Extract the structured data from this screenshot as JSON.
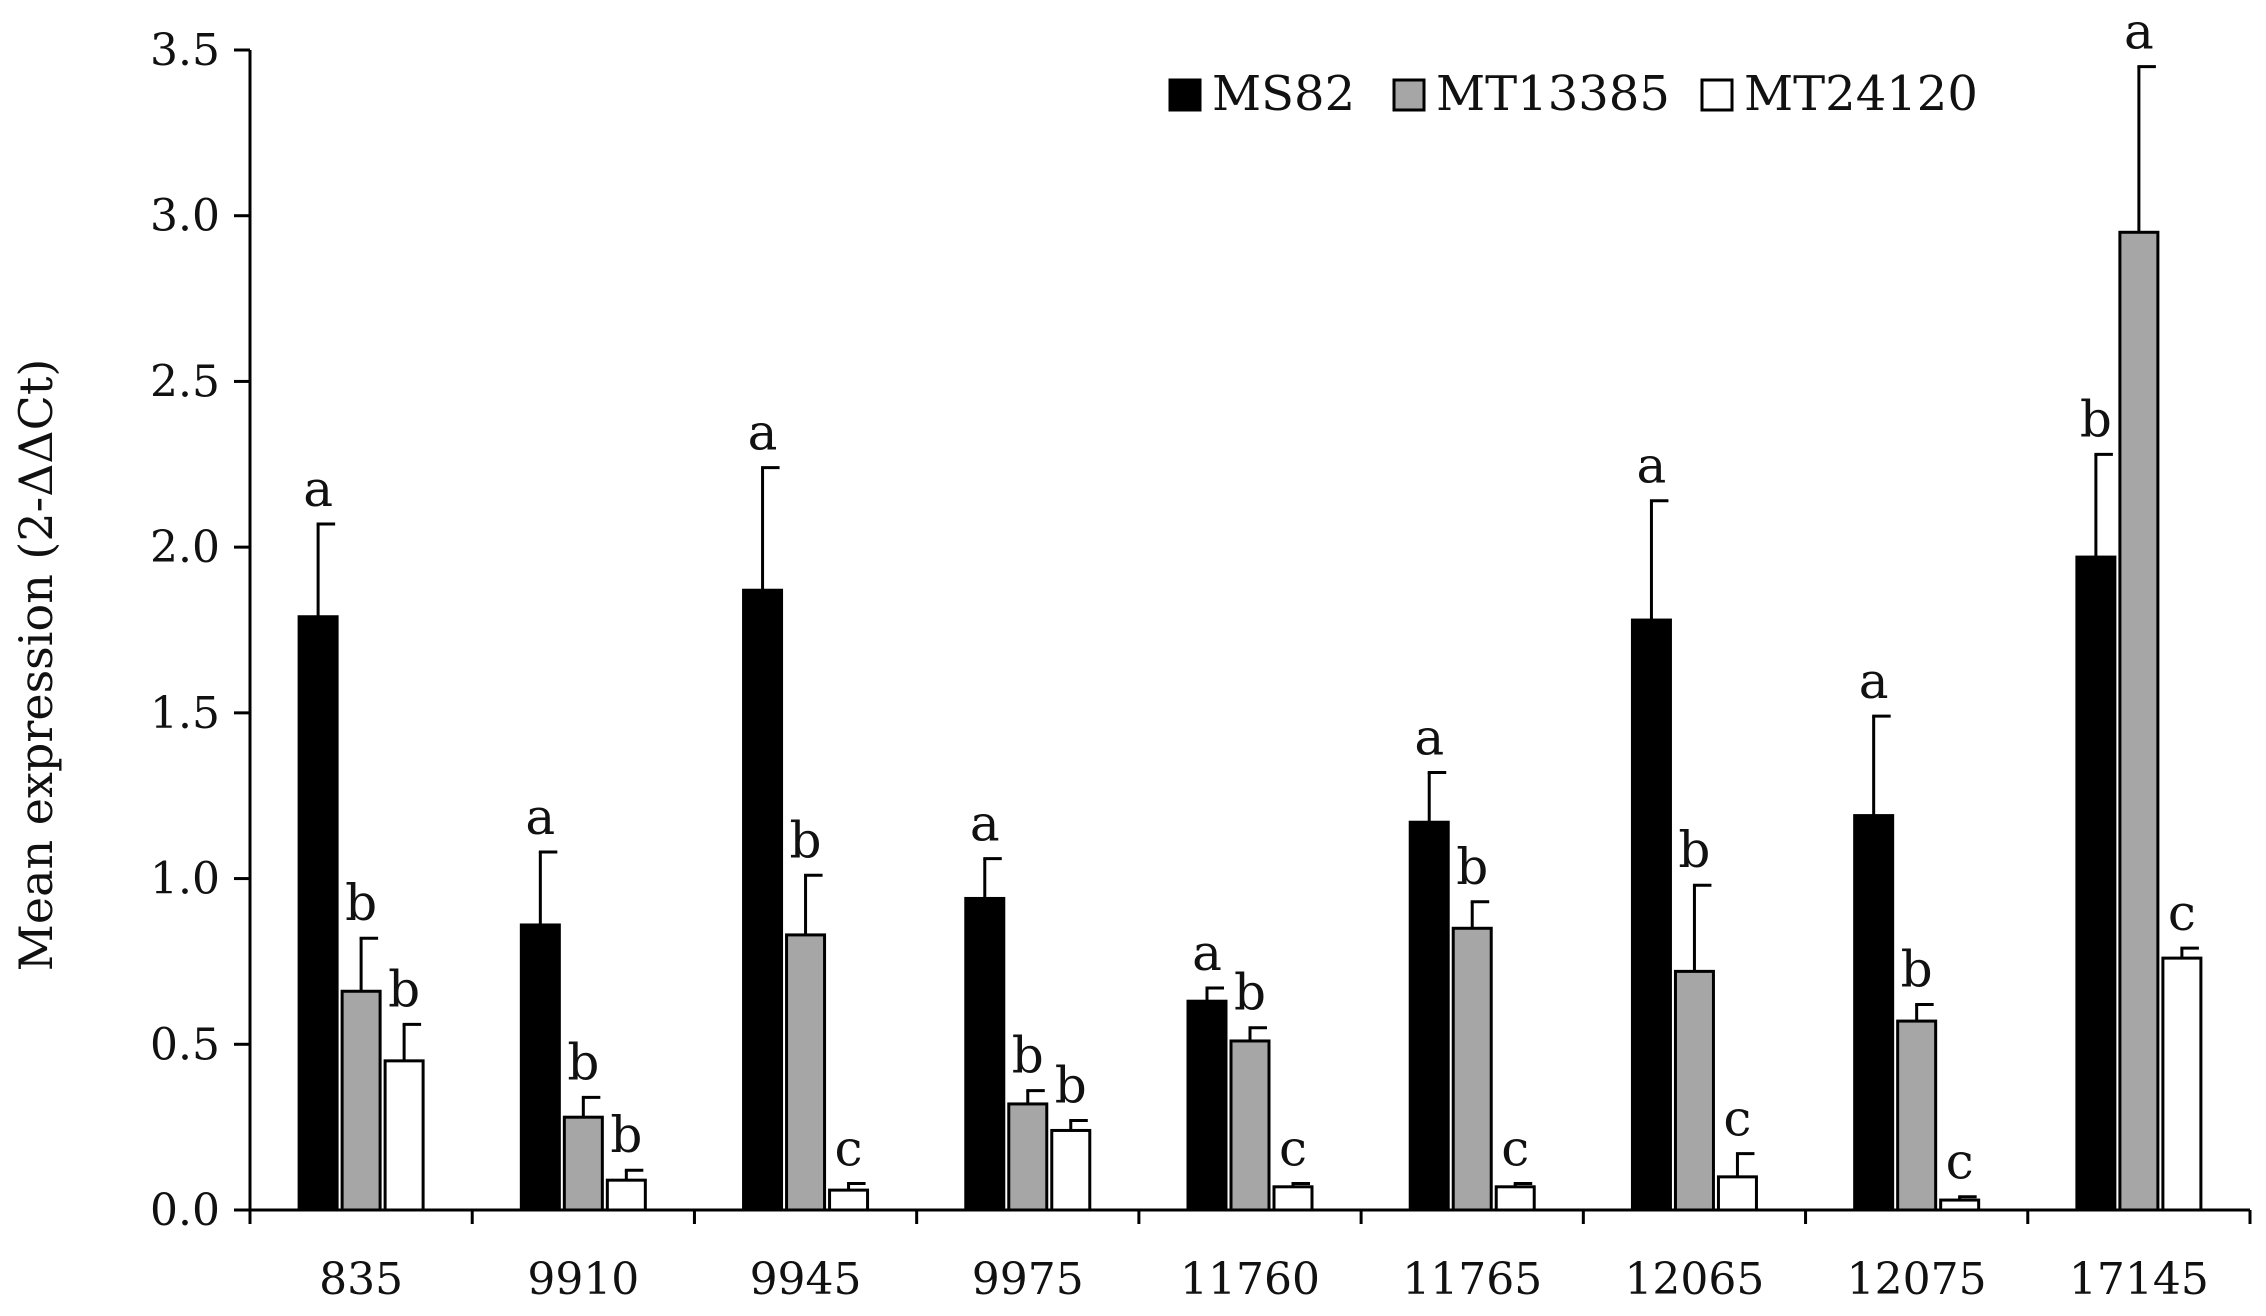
{
  "chart_data": {
    "type": "bar",
    "title": "",
    "xlabel": "",
    "ylabel": "Mean expression (2-ΔΔCt)",
    "ylim": [
      0,
      3.5
    ],
    "yticks": [
      "0.0",
      "0.5",
      "1.0",
      "1.5",
      "2.0",
      "2.5",
      "3.0",
      "3.5"
    ],
    "grid": false,
    "legend_position": "top-right",
    "categories": [
      "835",
      "9910",
      "9945",
      "9975",
      "11760",
      "11765",
      "12065",
      "12075",
      "17145"
    ],
    "series": [
      {
        "name": "MS82",
        "color": "#000000",
        "values": [
          1.79,
          0.86,
          1.87,
          0.94,
          0.63,
          1.17,
          1.78,
          1.19,
          1.97
        ],
        "errors": [
          0.28,
          0.22,
          0.37,
          0.12,
          0.04,
          0.15,
          0.36,
          0.3,
          0.31
        ],
        "labels": [
          "a",
          "a",
          "a",
          "a",
          "a",
          "a",
          "a",
          "a",
          "b"
        ]
      },
      {
        "name": "MT13385",
        "color": "#a6a6a6",
        "values": [
          0.66,
          0.28,
          0.83,
          0.32,
          0.51,
          0.85,
          0.72,
          0.57,
          2.95
        ],
        "errors": [
          0.16,
          0.06,
          0.18,
          0.04,
          0.04,
          0.08,
          0.26,
          0.05,
          0.5
        ],
        "labels": [
          "b",
          "b",
          "b",
          "b",
          "b",
          "b",
          "b",
          "b",
          "a"
        ]
      },
      {
        "name": "MT24120",
        "color": "#ffffff",
        "values": [
          0.45,
          0.09,
          0.06,
          0.24,
          0.07,
          0.07,
          0.1,
          0.03,
          0.76
        ],
        "errors": [
          0.11,
          0.03,
          0.02,
          0.03,
          0.01,
          0.01,
          0.07,
          0.01,
          0.03
        ],
        "labels": [
          "b",
          "b",
          "c",
          "b",
          "c",
          "c",
          "c",
          "c",
          "c"
        ]
      }
    ]
  }
}
